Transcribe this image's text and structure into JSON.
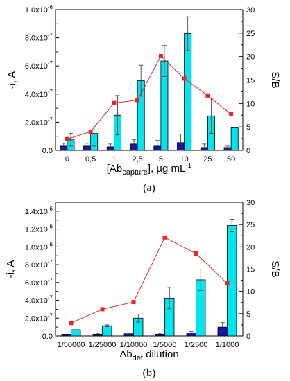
{
  "chart_data": [
    {
      "type": "bar",
      "panel_label": "(a)",
      "categories": [
        "0",
        "0,5",
        "1",
        "2,5",
        "5",
        "10",
        "25",
        "50"
      ],
      "xlabel": {
        "prefix": "[Ab",
        "sub": "capture",
        "suffix": "], µg mL",
        "sup": "-1"
      },
      "ylabel": "-i, A",
      "y2label": "S/B",
      "ylim": [
        0,
        1e-06
      ],
      "y2lim": [
        0,
        30
      ],
      "yticks": [
        {
          "v": 0,
          "mant": "0.0",
          "exp": ""
        },
        {
          "v": 2e-07,
          "mant": "2.0x10",
          "exp": "-7"
        },
        {
          "v": 4e-07,
          "mant": "4.0x10",
          "exp": "-7"
        },
        {
          "v": 6e-07,
          "mant": "6.0x10",
          "exp": "-7"
        },
        {
          "v": 8e-07,
          "mant": "8.0x10",
          "exp": "-7"
        },
        {
          "v": 1e-06,
          "mant": "1.0x10",
          "exp": "-6"
        }
      ],
      "y2ticks": [
        "0",
        "5",
        "10",
        "15",
        "20",
        "25",
        "30"
      ],
      "series": [
        {
          "kind": "bar",
          "color": "#1414b4",
          "values": [
            3e-08,
            3e-08,
            2.5e-08,
            4.5e-08,
            3e-08,
            5.5e-08,
            2e-08,
            2e-08
          ],
          "errors": [
            2e-08,
            2e-08,
            2e-08,
            3e-08,
            4e-08,
            6e-08,
            2.5e-08,
            1e-08
          ]
        },
        {
          "kind": "bar",
          "color": "#00e5ee",
          "values": [
            7.5e-08,
            1.2e-07,
            2.5e-07,
            4.95e-07,
            6.35e-07,
            8.3e-07,
            2.45e-07,
            1.6e-07
          ],
          "errors": [
            4.5e-08,
            9e-08,
            1.4e-07,
            1.1e-07,
            1.1e-07,
            1.2e-07,
            1.25e-07,
            0
          ]
        },
        {
          "kind": "line",
          "color": "#e8242a",
          "axis": "right",
          "values": [
            2.4,
            4.0,
            10.1,
            10.7,
            20.1,
            15.3,
            11.7,
            7.7
          ]
        }
      ]
    },
    {
      "type": "bar",
      "panel_label": "(b)",
      "categories": [
        "1/50000",
        "1/25000",
        "1/10000",
        "1/5000",
        "1/2500",
        "1/1000"
      ],
      "xlabel": {
        "prefix": "Ab",
        "sub": "det",
        "suffix": " dilution",
        "sup": ""
      },
      "ylabel": "-i, A",
      "y2label": "S/B",
      "ylim": [
        0,
        1.5e-06
      ],
      "y2lim": [
        0,
        30
      ],
      "yticks": [
        {
          "v": 0,
          "mant": "0.0",
          "exp": ""
        },
        {
          "v": 2e-07,
          "mant": "2.0x10",
          "exp": "-7"
        },
        {
          "v": 4e-07,
          "mant": "4.0x10",
          "exp": "-7"
        },
        {
          "v": 6e-07,
          "mant": "6.0x10",
          "exp": "-7"
        },
        {
          "v": 8e-07,
          "mant": "8.0x10",
          "exp": "-7"
        },
        {
          "v": 1e-06,
          "mant": "1.0x10",
          "exp": "-6"
        },
        {
          "v": 1.2e-06,
          "mant": "1.2x10",
          "exp": "-6"
        },
        {
          "v": 1.4e-06,
          "mant": "1.4x10",
          "exp": "-6"
        }
      ],
      "y2ticks": [
        "0",
        "5",
        "10",
        "15",
        "20",
        "25",
        "30"
      ],
      "series": [
        {
          "kind": "bar",
          "color": "#1414b4",
          "values": [
            2e-08,
            2e-08,
            2.5e-08,
            2e-08,
            3.5e-08,
            1e-07
          ],
          "errors": [
            0,
            1e-08,
            1e-08,
            1e-08,
            1.5e-08,
            5e-08
          ]
        },
        {
          "kind": "bar",
          "color": "#00e5ee",
          "values": [
            7e-08,
            1.15e-07,
            2e-07,
            4.25e-07,
            6.3e-07,
            1.24e-06
          ],
          "errors": [
            0,
            1e-08,
            4.5e-08,
            1.2e-07,
            1.2e-07,
            7e-08
          ]
        },
        {
          "kind": "line",
          "color": "#e8242a",
          "axis": "right",
          "values": [
            2.9,
            6.0,
            7.6,
            22.1,
            18.5,
            11.8
          ]
        }
      ]
    }
  ]
}
